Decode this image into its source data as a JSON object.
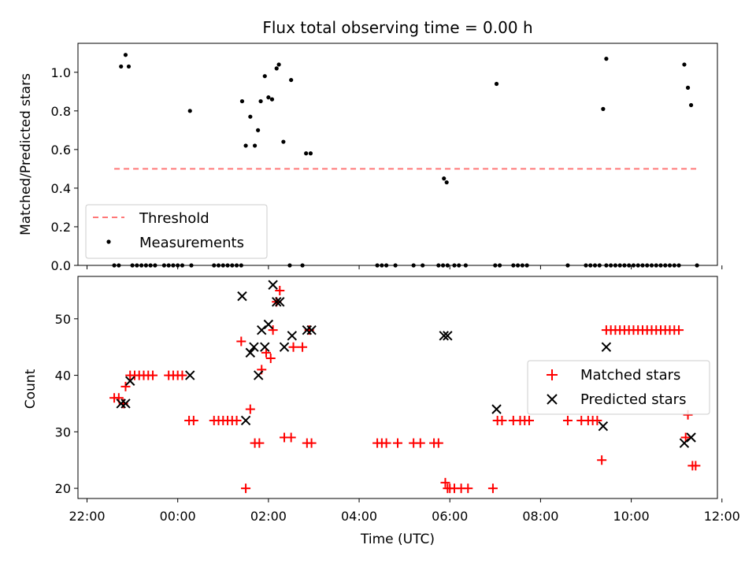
{
  "chart_data": {
    "type": "scatter",
    "title": "Flux total observing time = 0.00 h",
    "x_tick_labels": [
      "22:00",
      "00:00",
      "02:00",
      "04:00",
      "06:00",
      "08:00",
      "10:00",
      "12:00"
    ],
    "x_tick_hours": [
      -2,
      0,
      2,
      4,
      6,
      8,
      10,
      12
    ],
    "xlabel": "Time (UTC)",
    "xlim_hours": [
      -2.2,
      11.9
    ],
    "subplots": [
      {
        "ylabel": "Matched/Predicted stars",
        "ylim": [
          0,
          1.15
        ],
        "yticks": [
          0.0,
          0.2,
          0.4,
          0.6,
          0.8,
          1.0
        ],
        "ytick_labels": [
          "0.0",
          "0.2",
          "0.4",
          "0.6",
          "0.8",
          "1.0"
        ],
        "legend_position": "lower left",
        "threshold": {
          "name": "Threshold",
          "value": 0.5,
          "x_range_hours": [
            -1.4,
            11.45
          ],
          "color": "#ff7777"
        },
        "series": [
          {
            "name": "Measurements",
            "color": "#000000",
            "marker": "dot",
            "points": [
              [
                -1.25,
                1.03
              ],
              [
                -1.15,
                1.09
              ],
              [
                -1.08,
                1.03
              ],
              [
                0.27,
                0.8
              ],
              [
                1.42,
                0.85
              ],
              [
                1.5,
                0.62
              ],
              [
                1.6,
                0.77
              ],
              [
                1.7,
                0.62
              ],
              [
                1.77,
                0.7
              ],
              [
                1.83,
                0.85
              ],
              [
                1.92,
                0.98
              ],
              [
                2.0,
                0.87
              ],
              [
                2.08,
                0.86
              ],
              [
                2.18,
                1.02
              ],
              [
                2.23,
                1.04
              ],
              [
                2.33,
                0.64
              ],
              [
                2.5,
                0.96
              ],
              [
                2.83,
                0.58
              ],
              [
                2.93,
                0.58
              ],
              [
                5.87,
                0.45
              ],
              [
                5.93,
                0.43
              ],
              [
                7.03,
                0.94
              ],
              [
                9.38,
                0.81
              ],
              [
                9.45,
                1.07
              ],
              [
                11.17,
                1.04
              ],
              [
                11.25,
                0.92
              ],
              [
                11.32,
                0.83
              ],
              [
                -1.4,
                0
              ],
              [
                -1.3,
                0
              ],
              [
                -1.0,
                0
              ],
              [
                -0.9,
                0
              ],
              [
                -0.8,
                0
              ],
              [
                -0.7,
                0
              ],
              [
                -0.6,
                0
              ],
              [
                -0.5,
                0
              ],
              [
                -0.3,
                0
              ],
              [
                -0.2,
                0
              ],
              [
                -0.1,
                0
              ],
              [
                0.0,
                0
              ],
              [
                0.1,
                0
              ],
              [
                0.3,
                0
              ],
              [
                0.8,
                0
              ],
              [
                0.9,
                0
              ],
              [
                1.0,
                0
              ],
              [
                1.1,
                0
              ],
              [
                1.2,
                0
              ],
              [
                1.3,
                0
              ],
              [
                1.4,
                0
              ],
              [
                2.47,
                0
              ],
              [
                2.75,
                0
              ],
              [
                4.4,
                0
              ],
              [
                4.5,
                0
              ],
              [
                4.6,
                0
              ],
              [
                4.8,
                0
              ],
              [
                5.2,
                0
              ],
              [
                5.4,
                0
              ],
              [
                5.75,
                0
              ],
              [
                5.85,
                0
              ],
              [
                5.95,
                0
              ],
              [
                6.1,
                0
              ],
              [
                6.2,
                0
              ],
              [
                6.35,
                0
              ],
              [
                7.0,
                0
              ],
              [
                7.1,
                0
              ],
              [
                7.4,
                0
              ],
              [
                7.5,
                0
              ],
              [
                7.6,
                0
              ],
              [
                7.7,
                0
              ],
              [
                8.6,
                0
              ],
              [
                9.0,
                0
              ],
              [
                9.1,
                0
              ],
              [
                9.2,
                0
              ],
              [
                9.3,
                0
              ],
              [
                9.45,
                0
              ],
              [
                9.55,
                0
              ],
              [
                9.65,
                0
              ],
              [
                9.75,
                0
              ],
              [
                9.85,
                0
              ],
              [
                9.95,
                0
              ],
              [
                10.05,
                0
              ],
              [
                10.15,
                0
              ],
              [
                10.25,
                0
              ],
              [
                10.35,
                0
              ],
              [
                10.45,
                0
              ],
              [
                10.55,
                0
              ],
              [
                10.65,
                0
              ],
              [
                10.75,
                0
              ],
              [
                10.85,
                0
              ],
              [
                10.95,
                0
              ],
              [
                11.05,
                0
              ],
              [
                11.45,
                0
              ]
            ]
          }
        ]
      },
      {
        "ylabel": "Count",
        "ylim": [
          18.2,
          57.5
        ],
        "yticks": [
          20,
          30,
          40,
          50
        ],
        "ytick_labels": [
          "20",
          "30",
          "40",
          "50"
        ],
        "legend_position": "center right",
        "series": [
          {
            "name": "Matched stars",
            "color": "#ff0000",
            "marker": "plus",
            "points": [
              [
                -1.4,
                36
              ],
              [
                -1.3,
                36
              ],
              [
                -1.2,
                35
              ],
              [
                -1.15,
                38
              ],
              [
                -1.05,
                40
              ],
              [
                -0.95,
                40
              ],
              [
                -0.85,
                40
              ],
              [
                -0.75,
                40
              ],
              [
                -0.65,
                40
              ],
              [
                -0.55,
                40
              ],
              [
                -0.2,
                40
              ],
              [
                -0.1,
                40
              ],
              [
                0.0,
                40
              ],
              [
                0.1,
                40
              ],
              [
                0.25,
                32
              ],
              [
                0.35,
                32
              ],
              [
                0.8,
                32
              ],
              [
                0.9,
                32
              ],
              [
                1.0,
                32
              ],
              [
                1.1,
                32
              ],
              [
                1.2,
                32
              ],
              [
                1.3,
                32
              ],
              [
                1.4,
                46
              ],
              [
                1.5,
                20
              ],
              [
                1.6,
                34
              ],
              [
                1.7,
                28
              ],
              [
                1.8,
                28
              ],
              [
                1.85,
                41
              ],
              [
                1.95,
                44
              ],
              [
                2.05,
                43
              ],
              [
                2.1,
                48
              ],
              [
                2.18,
                53
              ],
              [
                2.25,
                55
              ],
              [
                2.35,
                29
              ],
              [
                2.5,
                29
              ],
              [
                2.55,
                45
              ],
              [
                2.75,
                45
              ],
              [
                2.85,
                28
              ],
              [
                2.95,
                28
              ],
              [
                2.9,
                48
              ],
              [
                4.4,
                28
              ],
              [
                4.5,
                28
              ],
              [
                4.6,
                28
              ],
              [
                4.85,
                28
              ],
              [
                5.2,
                28
              ],
              [
                5.35,
                28
              ],
              [
                5.65,
                28
              ],
              [
                5.75,
                28
              ],
              [
                5.9,
                21
              ],
              [
                5.95,
                20
              ],
              [
                6.0,
                20
              ],
              [
                6.1,
                20
              ],
              [
                6.25,
                20
              ],
              [
                6.4,
                20
              ],
              [
                6.95,
                20
              ],
              [
                7.05,
                32
              ],
              [
                7.15,
                32
              ],
              [
                7.4,
                32
              ],
              [
                7.55,
                32
              ],
              [
                7.65,
                32
              ],
              [
                7.75,
                32
              ],
              [
                8.6,
                32
              ],
              [
                8.9,
                32
              ],
              [
                9.05,
                32
              ],
              [
                9.15,
                32
              ],
              [
                9.25,
                32
              ],
              [
                9.35,
                25
              ],
              [
                9.45,
                48
              ],
              [
                9.55,
                48
              ],
              [
                9.65,
                48
              ],
              [
                9.75,
                48
              ],
              [
                9.85,
                48
              ],
              [
                9.95,
                48
              ],
              [
                10.05,
                48
              ],
              [
                10.15,
                48
              ],
              [
                10.25,
                48
              ],
              [
                10.35,
                48
              ],
              [
                10.45,
                48
              ],
              [
                10.55,
                48
              ],
              [
                10.65,
                48
              ],
              [
                10.75,
                48
              ],
              [
                10.85,
                48
              ],
              [
                10.95,
                48
              ],
              [
                11.05,
                48
              ],
              [
                11.2,
                29
              ],
              [
                11.25,
                33
              ],
              [
                11.35,
                24
              ],
              [
                11.42,
                24
              ]
            ]
          },
          {
            "name": "Predicted stars",
            "color": "#000000",
            "marker": "x",
            "points": [
              [
                -1.25,
                35
              ],
              [
                -1.15,
                35
              ],
              [
                -1.05,
                39
              ],
              [
                0.27,
                40
              ],
              [
                1.42,
                54
              ],
              [
                1.5,
                32
              ],
              [
                1.6,
                44
              ],
              [
                1.68,
                45
              ],
              [
                1.78,
                40
              ],
              [
                1.85,
                48
              ],
              [
                1.92,
                45
              ],
              [
                2.0,
                49
              ],
              [
                2.1,
                56
              ],
              [
                2.18,
                53
              ],
              [
                2.25,
                53
              ],
              [
                2.35,
                45
              ],
              [
                2.52,
                47
              ],
              [
                2.85,
                48
              ],
              [
                2.95,
                48
              ],
              [
                5.87,
                47
              ],
              [
                5.95,
                47
              ],
              [
                7.03,
                34
              ],
              [
                9.38,
                31
              ],
              [
                9.45,
                45
              ],
              [
                11.17,
                28
              ],
              [
                11.32,
                29
              ]
            ]
          }
        ]
      }
    ]
  }
}
